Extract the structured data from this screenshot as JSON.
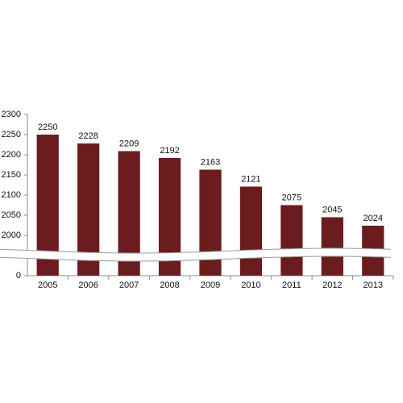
{
  "chart_data": {
    "type": "bar",
    "categories": [
      "2005",
      "2006",
      "2007",
      "2008",
      "2009",
      "2010",
      "2011",
      "2012",
      "2013"
    ],
    "values": [
      2250,
      2228,
      2209,
      2192,
      2163,
      2121,
      2075,
      2045,
      2024
    ],
    "color": "#6b1c1f",
    "ylim": [
      0,
      2300
    ],
    "axis_break": [
      0,
      2000
    ],
    "yticks": [
      0,
      2000,
      2050,
      2100,
      2150,
      2200,
      2250,
      2300
    ],
    "data_labels": true,
    "grid": false
  }
}
